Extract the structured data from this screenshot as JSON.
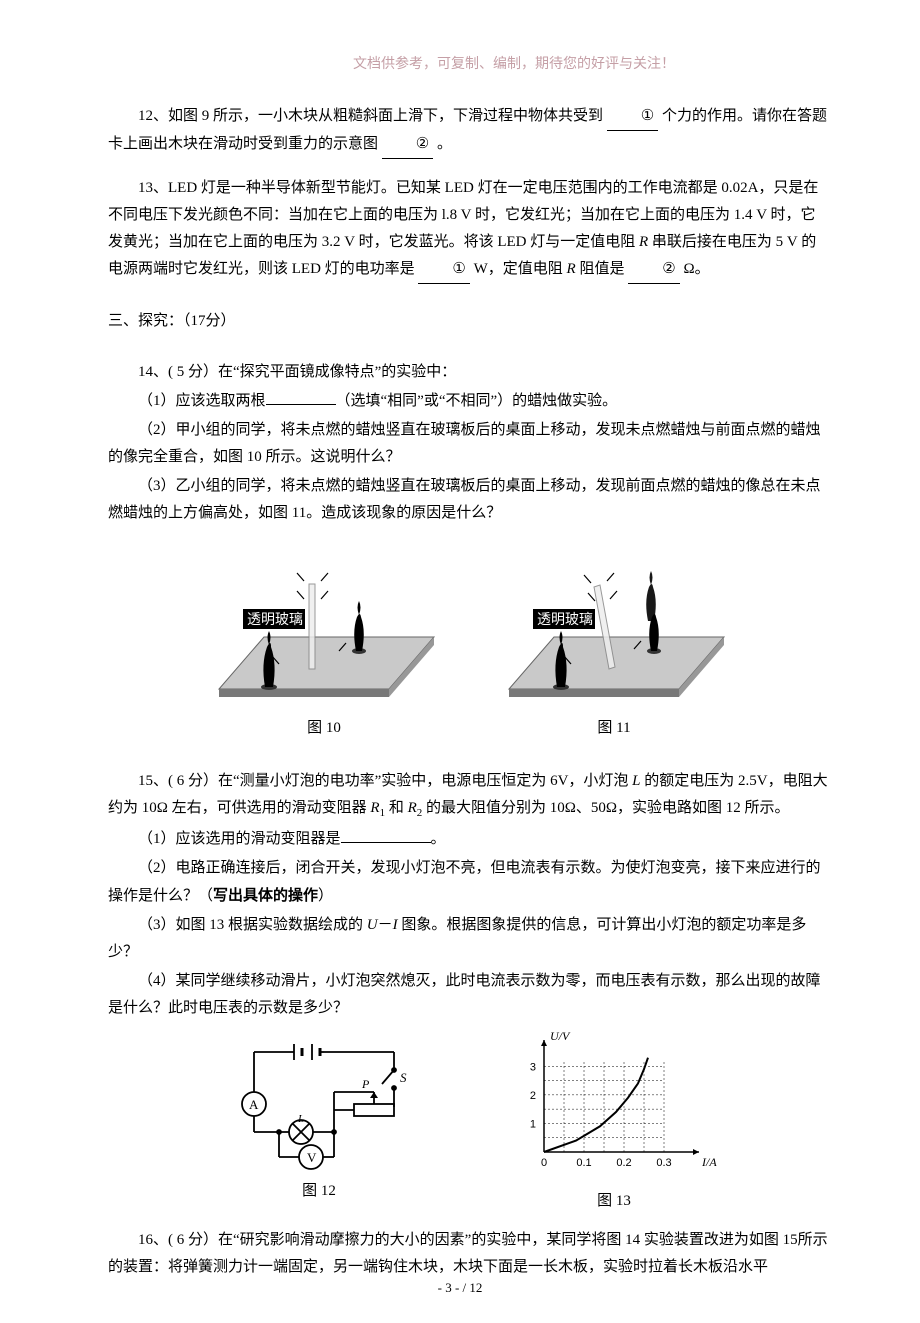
{
  "header_note": "文档供参考，可复制、编制，期待您的好评与关注！",
  "q12": {
    "text_a": "12、如图 9 所示，一小木块从粗糙斜面上滑下，下滑过程中物体共受到",
    "blank1": "①",
    "text_b": "个力的作用。请你在答题卡上画出木块在滑动时受到重力的示意图",
    "blank2": "②",
    "text_c": "。"
  },
  "q13": {
    "text": "13、LED 灯是一种半导体新型节能灯。已知某 LED 灯在一定电压范围内的工作电流都是 0.02A，只是在不同电压下发光颜色不同：当加在它上面的电压为 l.8 V 时，它发红光；当加在它上面的电压为 1.4 V 时，它发黄光；当加在它上面的电压为 3.2 V 时，它发蓝光。将该 LED 灯与一定值电阻 ",
    "r": "R",
    "text2": " 串联后接在电压为 5 V 的电源两端时它发红光，则该 LED 灯的电功率是",
    "blank1": "①",
    "text3": "W，定值电阻 ",
    "text4": " 阻值是",
    "blank2": "②",
    "text5": "Ω。"
  },
  "section3": "三、探究：（17分）",
  "q14": {
    "intro": "14、( 5 分）在“探究平面镜成像特点”的实验中：",
    "p1a": "（1）应该选取两根",
    "p1b": "（选填“相同”或“不相同”）的蜡烛做实验。",
    "p2": "（2）甲小组的同学，将未点燃的蜡烛竖直在玻璃板后的桌面上移动，发现未点燃蜡烛与前面点燃的蜡烛的像完全重合，如图 10 所示。这说明什么？",
    "p3": "（3）乙小组的同学，将未点燃的蜡烛竖直在玻璃板后的桌面上移动，发现前面点燃的蜡烛的像总在未点燃蜡烛的上方偏高处，如图 11。造成该现象的原因是什么？",
    "fig10_caption": "图 10",
    "fig11_caption": "图 11",
    "glass_label": "透明玻璃"
  },
  "q15": {
    "intro_a": "15、( 6 分）在“测量小灯泡的电功率”实验中，电源电压恒定为 6V，小灯泡 ",
    "l": "L",
    "intro_b": " 的额定电压为 2.5V，电阻大约为 10Ω 左右，可供选用的滑动变阻器 ",
    "r1": "R",
    "sub1": "1",
    "intro_c": " 和 ",
    "r2": "R",
    "sub2": "2",
    "intro_d": " 的最大阻值分别为 10Ω、50Ω，实验电路如图 12 所示。",
    "p1a": "（1）应该选用的滑动变阻器是",
    "p1b": "。",
    "p2a": "（2）电路正确连接后，闭合开关，发现小灯泡不亮，但电流表有示数。为使灯泡变亮，接下来应进行的操作是什么？（",
    "p2b": "写出具体的操作",
    "p2c": "）",
    "p3a": "（3）如图 13 根据实验数据绘成的 ",
    "u": "U",
    "dash": "－",
    "i": "I",
    "p3b": " 图象。根据图象提供的信息，可计算出小灯泡的额定功率是多少？",
    "p4": "（4）某同学继续移动滑片，小灯泡突然熄灭，此时电流表示数为零，而电压表有示数，那么出现的故障是什么？此时电压表的示数是多少？",
    "fig12_caption": "图 12",
    "fig13_caption": "图 13"
  },
  "q16": {
    "text": "16、( 6 分）在“研究影响滑动摩擦力的大小的因素”的实验中，某同学将图 14 实验装置改进为如图 15所示的装置：将弹簧测力计一端固定，另一端钩住木块，木块下面是一长木板，实验时拉着长木板沿水平"
  },
  "footer": "- 3 -  / 12",
  "circuit": {
    "labels": {
      "S": "S",
      "P": "P",
      "A": "A",
      "V": "V",
      "L": "L"
    },
    "colors": {
      "stroke": "#000",
      "bg": "#fff"
    }
  },
  "chart": {
    "type": "line",
    "xlabel": "I/A",
    "ylabel": "U/V",
    "xlim": [
      0,
      0.35
    ],
    "ylim": [
      0,
      3.5
    ],
    "xticks": [
      0,
      0.1,
      0.2,
      0.3
    ],
    "yticks": [
      1,
      2,
      3
    ],
    "grid_color": "#000",
    "bg": "#fff",
    "curve_points": [
      [
        0,
        0
      ],
      [
        0.08,
        0.4
      ],
      [
        0.14,
        0.9
      ],
      [
        0.18,
        1.4
      ],
      [
        0.21,
        1.9
      ],
      [
        0.235,
        2.4
      ],
      [
        0.25,
        2.9
      ],
      [
        0.26,
        3.3
      ]
    ]
  },
  "candle_fig": {
    "table_fill": "#989898",
    "table_fill2": "#c9c9c9",
    "side_fill": "#787878",
    "candle_fill": "#000",
    "label_bg": "#000",
    "label_color": "#fff"
  }
}
